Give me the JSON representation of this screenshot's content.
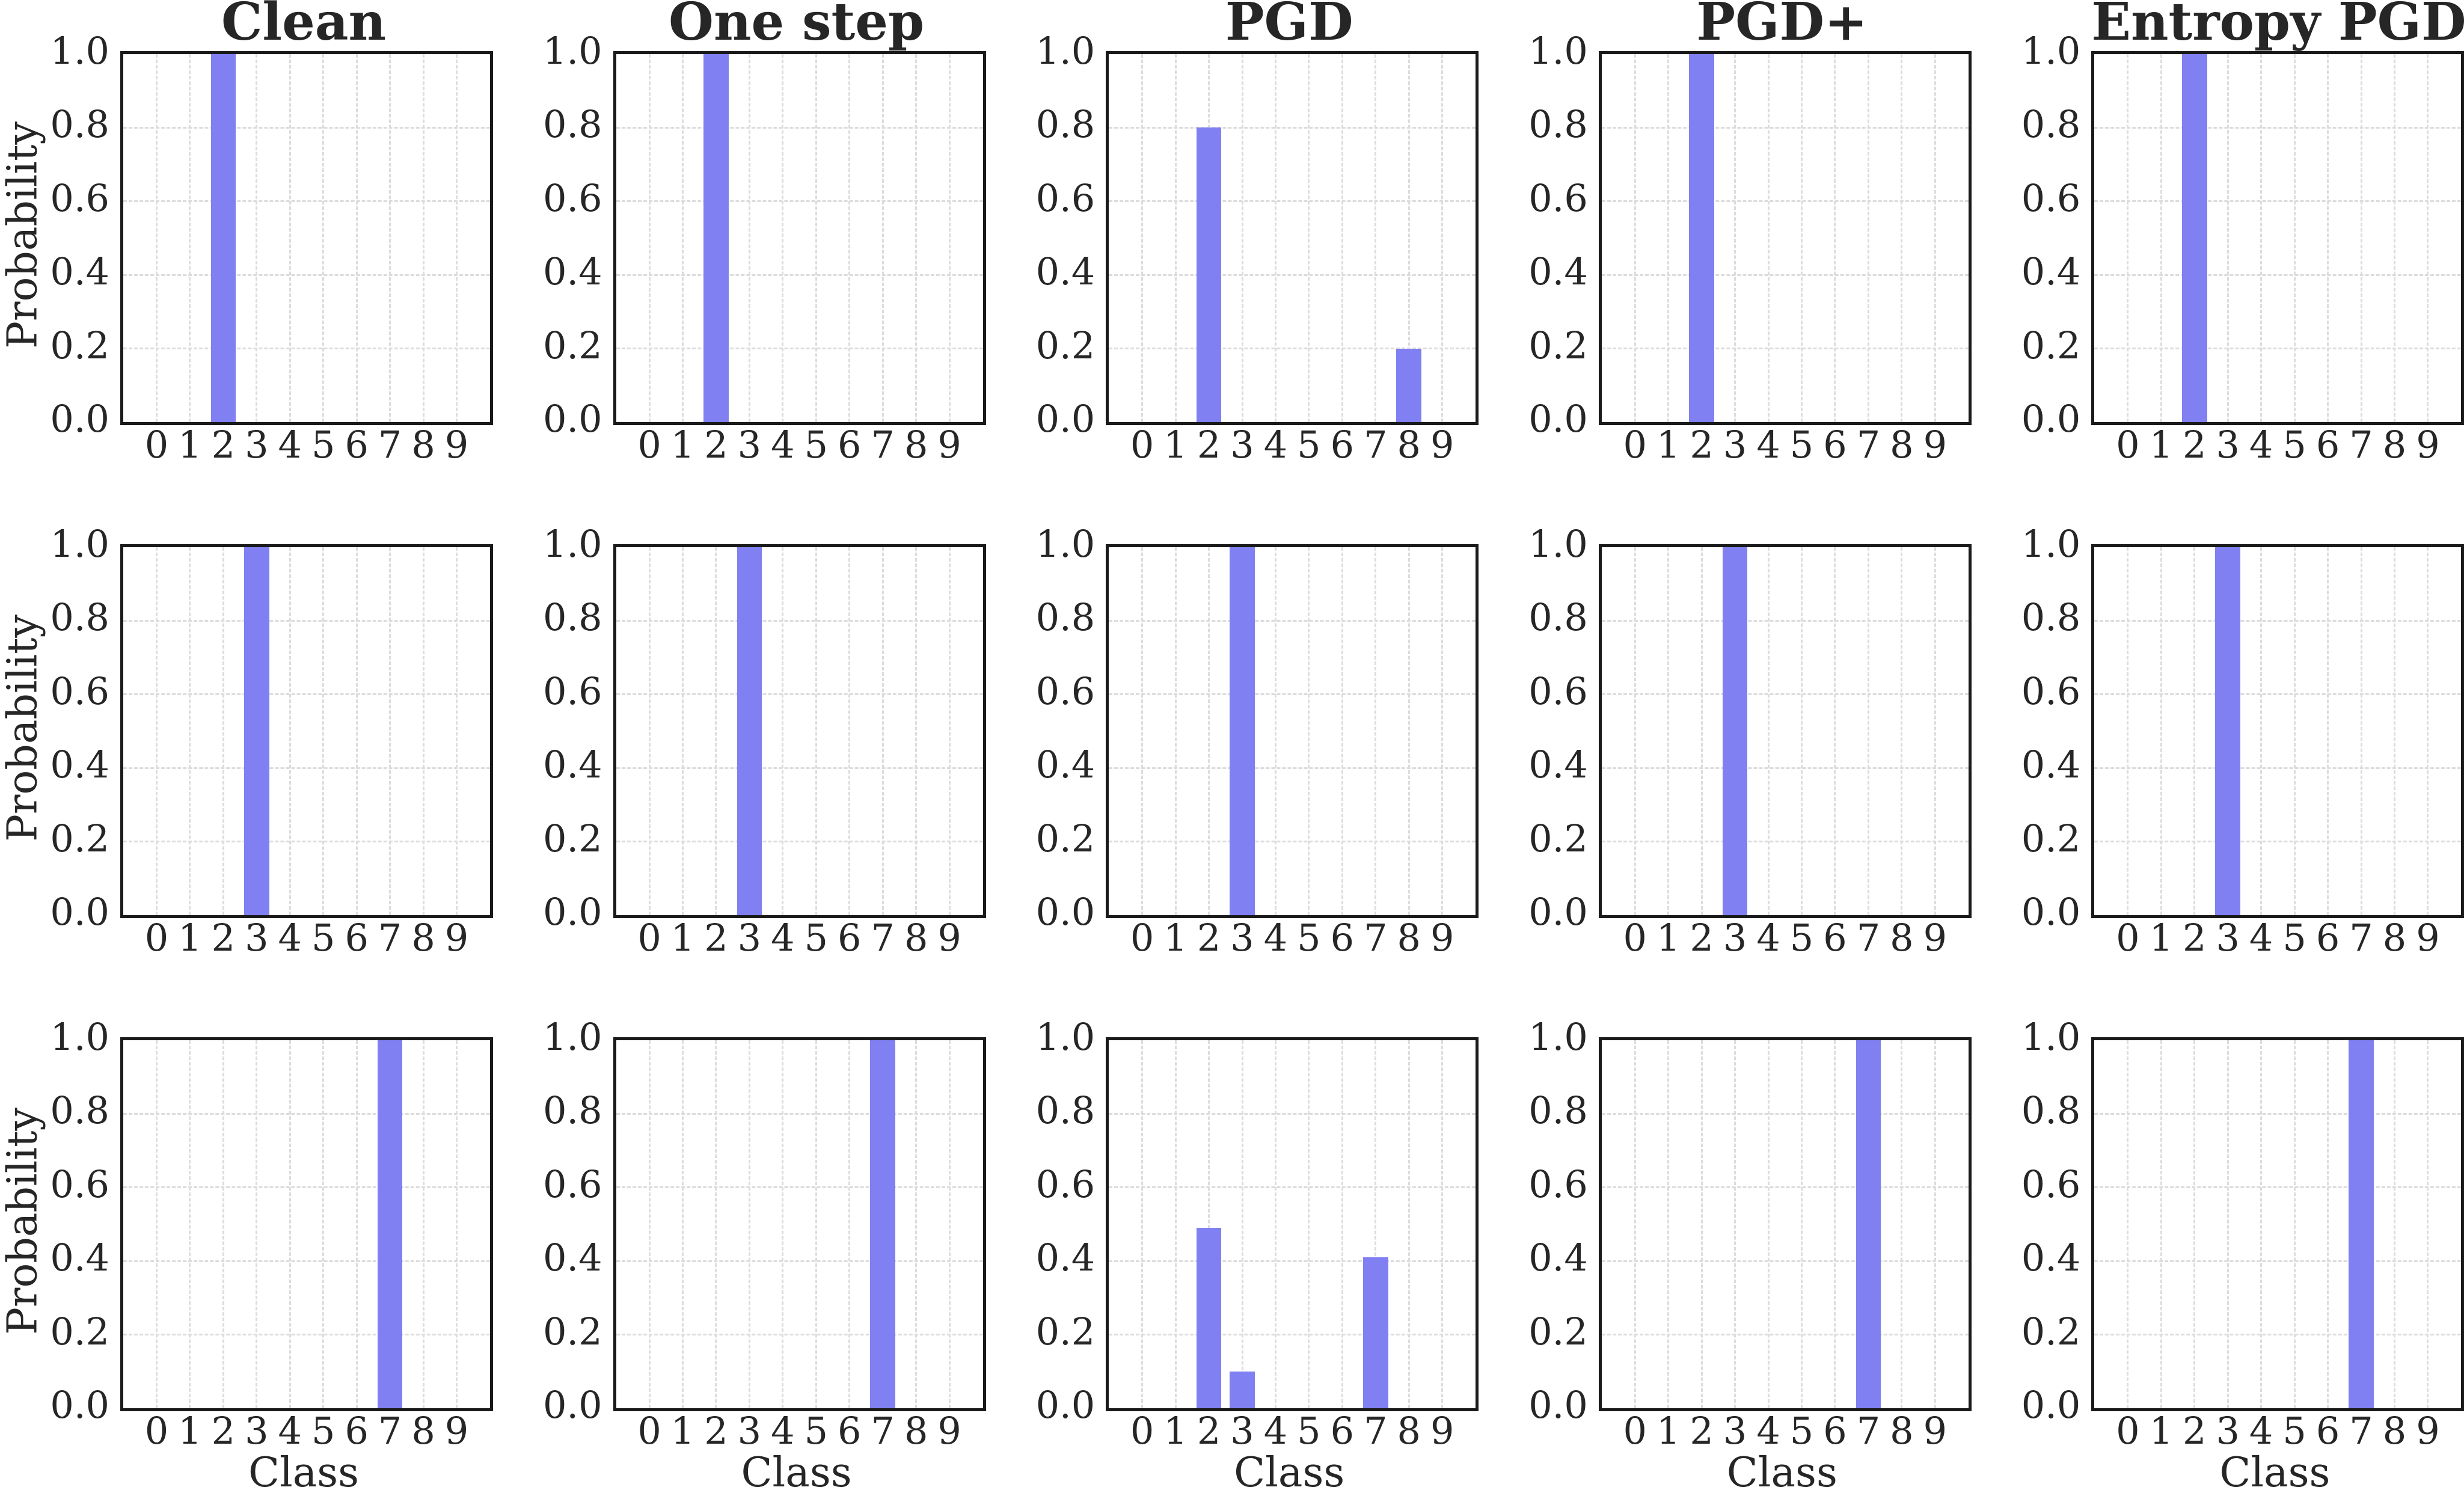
{
  "figure": {
    "background": "#ffffff",
    "text_color": "#262626",
    "spine_color": "#1a1a1a",
    "grid_color": "#dcdcdc",
    "accent_bar_color": "#8080f2"
  },
  "chart_data": {
    "type": "bar",
    "grid": true,
    "legend": "none",
    "rows_count": 3,
    "cols_count": 5,
    "column_titles": [
      "Clean",
      "One step",
      "PGD",
      "PGD+",
      "Entropy PGD"
    ],
    "x_categories": [
      "0",
      "1",
      "2",
      "3",
      "4",
      "5",
      "6",
      "7",
      "8",
      "9"
    ],
    "xlabel": "Class",
    "ylabel": "Probability",
    "ylim": [
      0.0,
      1.0
    ],
    "ytick_values": [
      0.0,
      0.2,
      0.4,
      0.6,
      0.8,
      1.0
    ],
    "ytick_labels": [
      "0.0",
      "0.2",
      "0.4",
      "0.6",
      "0.8",
      "1.0"
    ],
    "bar_color": "#8080f2",
    "cells": [
      {
        "row": 0,
        "col": 0,
        "column": "Clean",
        "values": [
          0,
          0,
          1.0,
          0,
          0,
          0,
          0,
          0,
          0,
          0
        ]
      },
      {
        "row": 0,
        "col": 1,
        "column": "One step",
        "values": [
          0,
          0,
          1.0,
          0,
          0,
          0,
          0,
          0,
          0,
          0
        ]
      },
      {
        "row": 0,
        "col": 2,
        "column": "PGD",
        "values": [
          0,
          0,
          0.8,
          0,
          0,
          0,
          0,
          0,
          0.2,
          0
        ]
      },
      {
        "row": 0,
        "col": 3,
        "column": "PGD+",
        "values": [
          0,
          0,
          1.0,
          0,
          0,
          0,
          0,
          0,
          0,
          0
        ]
      },
      {
        "row": 0,
        "col": 4,
        "column": "Entropy PGD",
        "values": [
          0,
          0,
          1.0,
          0,
          0,
          0,
          0,
          0,
          0,
          0
        ]
      },
      {
        "row": 1,
        "col": 0,
        "column": "Clean",
        "values": [
          0,
          0,
          0,
          1.0,
          0,
          0,
          0,
          0,
          0,
          0
        ]
      },
      {
        "row": 1,
        "col": 1,
        "column": "One step",
        "values": [
          0,
          0,
          0,
          1.0,
          0,
          0,
          0,
          0,
          0,
          0
        ]
      },
      {
        "row": 1,
        "col": 2,
        "column": "PGD",
        "values": [
          0,
          0,
          0,
          1.0,
          0,
          0,
          0,
          0,
          0,
          0
        ]
      },
      {
        "row": 1,
        "col": 3,
        "column": "PGD+",
        "values": [
          0,
          0,
          0,
          1.0,
          0,
          0,
          0,
          0,
          0,
          0
        ]
      },
      {
        "row": 1,
        "col": 4,
        "column": "Entropy PGD",
        "values": [
          0,
          0,
          0,
          1.0,
          0,
          0,
          0,
          0,
          0,
          0
        ]
      },
      {
        "row": 2,
        "col": 0,
        "column": "Clean",
        "values": [
          0,
          0,
          0,
          0,
          0,
          0,
          0,
          1.0,
          0,
          0
        ]
      },
      {
        "row": 2,
        "col": 1,
        "column": "One step",
        "values": [
          0,
          0,
          0,
          0,
          0,
          0,
          0,
          1.0,
          0,
          0
        ]
      },
      {
        "row": 2,
        "col": 2,
        "column": "PGD",
        "values": [
          0,
          0,
          0.49,
          0.1,
          0,
          0,
          0,
          0.41,
          0,
          0
        ]
      },
      {
        "row": 2,
        "col": 3,
        "column": "PGD+",
        "values": [
          0,
          0,
          0,
          0,
          0,
          0,
          0,
          1.0,
          0,
          0
        ]
      },
      {
        "row": 2,
        "col": 4,
        "column": "Entropy PGD",
        "values": [
          0,
          0,
          0,
          0,
          0,
          0,
          0,
          1.0,
          0,
          0
        ]
      }
    ],
    "layout_hints": {
      "grid_style": "dashed",
      "titles_on_top_row_only": true,
      "ylabel_on_first_column_only": true,
      "xlabel_on_bottom_row_only": true,
      "yticks_on_every_subplot": true
    }
  }
}
